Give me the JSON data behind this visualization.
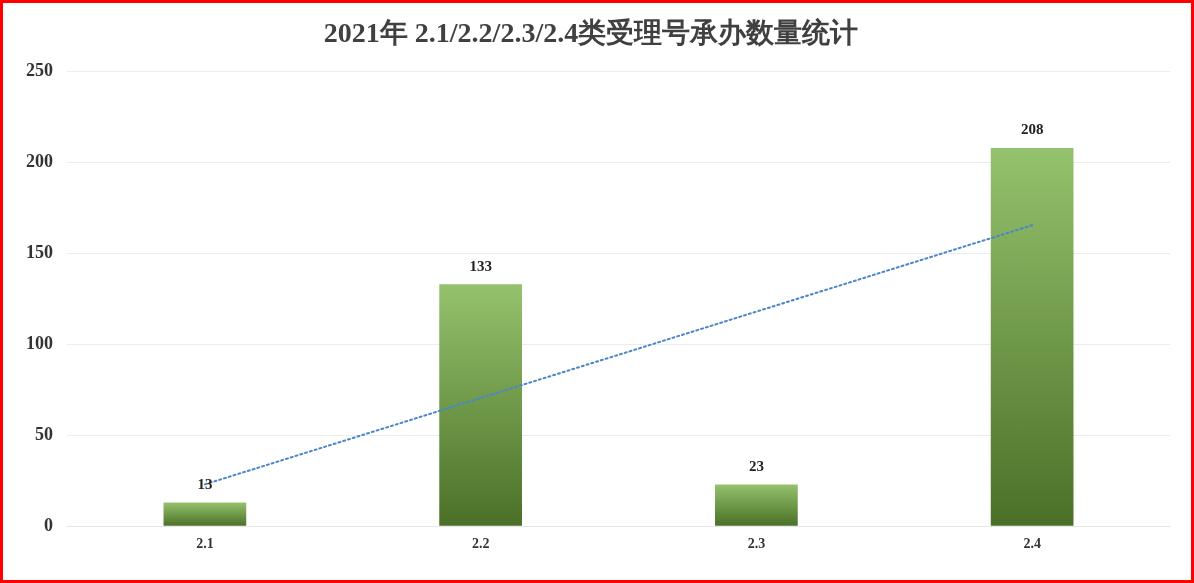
{
  "chart_data": {
    "type": "bar",
    "title": "2021年 2.1/2.2/2.3/2.4类受理号承办数量统计",
    "categories": [
      "2.1",
      "2.2",
      "2.3",
      "2.4"
    ],
    "series": [
      {
        "color": "#72ad3c",
        "values": [
          13,
          133,
          23,
          208
        ],
        "value_labels": [
          "13",
          "133",
          "23",
          "208"
        ]
      },
      {
        "type": "line",
        "color": "#4a86c8",
        "values": [
          23,
          70.5,
          118,
          165.5
        ],
        "line_style": "dotted",
        "marker": "none"
      }
    ],
    "ylim": [
      0,
      250
    ],
    "yticks": [
      0,
      50,
      100,
      150,
      200,
      250
    ],
    "grid": "y",
    "legend": false
  }
}
